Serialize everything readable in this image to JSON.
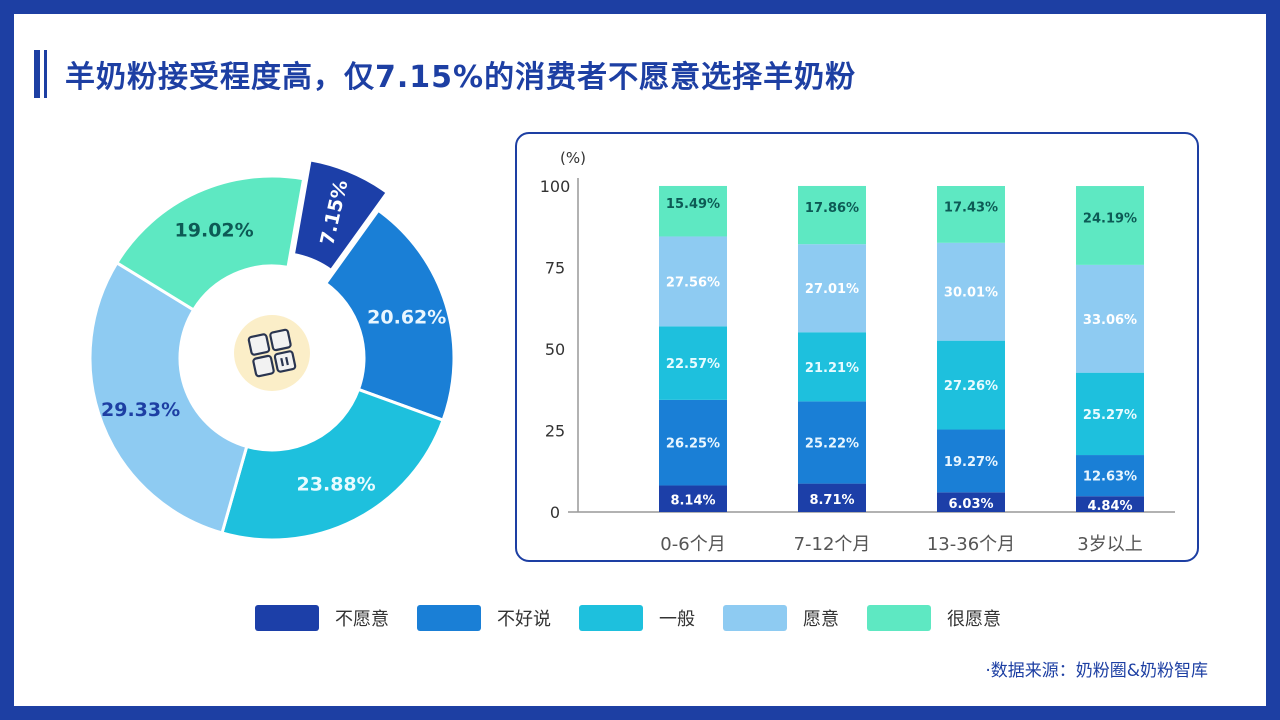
{
  "title": "羊奶粉接受程度高，仅7.15%的消费者不愿意选择羊奶粉",
  "source": "·数据来源：奶粉圈&奶粉智库",
  "colors": {
    "frame": "#1d3fa3",
    "不愿意": "#1c3fa8",
    "不好说": "#1a7fd6",
    "一般": "#1ec0dd",
    "愿意": "#8ecbf2",
    "很愿意": "#5ee8c2"
  },
  "center_icon": "grid-blocks-icon",
  "legend": [
    "不愿意",
    "不好说",
    "一般",
    "愿意",
    "很愿意"
  ],
  "chart_data": [
    {
      "type": "pie",
      "donut": true,
      "labels": [
        "不愿意",
        "不好说",
        "一般",
        "愿意",
        "很愿意"
      ],
      "values": [
        7.15,
        20.62,
        23.88,
        29.33,
        19.02
      ],
      "data_labels": [
        "7.15%",
        "20.62%",
        "23.88%",
        "29.33%",
        "19.02%"
      ],
      "exploded": "不愿意"
    },
    {
      "type": "bar",
      "stacked": true,
      "ylabel": "(%)",
      "ylim": [
        0,
        100
      ],
      "yticks": [
        0,
        25,
        50,
        75,
        100
      ],
      "categories": [
        "0-6个月",
        "7-12个月",
        "13-36个月",
        "3岁以上"
      ],
      "series": [
        {
          "name": "不愿意",
          "values": [
            8.14,
            8.71,
            6.03,
            4.84
          ]
        },
        {
          "name": "不好说",
          "values": [
            26.25,
            25.22,
            19.27,
            12.63
          ]
        },
        {
          "name": "一般",
          "values": [
            22.57,
            21.21,
            27.26,
            25.27
          ]
        },
        {
          "name": "愿意",
          "values": [
            27.56,
            27.01,
            30.01,
            33.06
          ]
        },
        {
          "name": "很愿意",
          "values": [
            15.49,
            17.86,
            17.43,
            24.19
          ]
        }
      ]
    }
  ]
}
